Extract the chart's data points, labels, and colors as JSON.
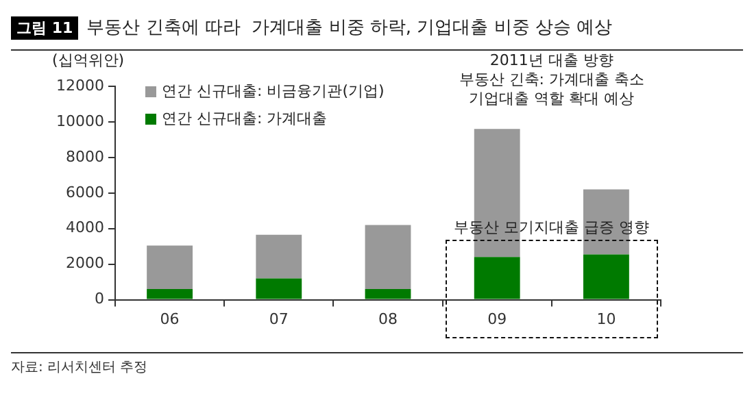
{
  "chart_data": {
    "type": "bar",
    "title": "부동산 긴축에 따라  가계대출 비중 하락, 기업대출 비중 상승 예상",
    "ylabel": "(십억위안)",
    "categories": [
      "06",
      "07",
      "08",
      "09",
      "10"
    ],
    "stacked": true,
    "series": [
      {
        "name": "연간 신규대출: 가계대출",
        "color": "#007a00",
        "values": [
          600,
          1200,
          600,
          2400,
          2550
        ]
      },
      {
        "name": "연간 신규대출: 비금융기관(기업)",
        "color": "#999999",
        "values": [
          2450,
          2450,
          3600,
          7200,
          3650
        ]
      }
    ],
    "ylim": [
      0,
      12000
    ],
    "yticks": [
      0,
      2000,
      4000,
      6000,
      8000,
      10000,
      12000
    ],
    "legend": "top left",
    "annotations": [
      "그림 11",
      "2011년 대출 방향\n부동산 긴축: 가계대출 축소\n기업대출 역할 확대 예상",
      "부동산 모기지대출 급증 영향",
      "자료: 리서치센터 추정"
    ]
  }
}
